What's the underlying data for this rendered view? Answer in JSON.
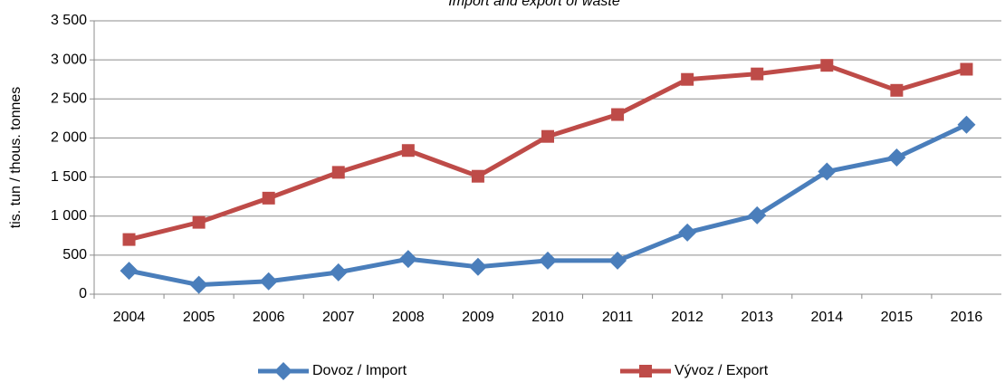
{
  "chart_data": {
    "type": "line",
    "title": "Import and export of waste",
    "y_label": "tis. tun / thous. tonnes",
    "categories": [
      "2004",
      "2005",
      "2006",
      "2007",
      "2008",
      "2009",
      "2010",
      "2011",
      "2012",
      "2013",
      "2014",
      "2015",
      "2016"
    ],
    "series": [
      {
        "name": "Dovoz / Import",
        "color": "#4a7ebb",
        "marker": "diamond",
        "values": [
          300,
          120,
          165,
          280,
          450,
          350,
          430,
          430,
          790,
          1010,
          1570,
          1750,
          2170
        ]
      },
      {
        "name": "Vývoz / Export",
        "color": "#be4b48",
        "marker": "square",
        "values": [
          700,
          920,
          1230,
          1560,
          1840,
          1510,
          2020,
          2300,
          2750,
          2820,
          2930,
          2610,
          2880
        ]
      }
    ],
    "ylim": [
      0,
      3500
    ],
    "yticks": [
      0,
      500,
      {
        "value": 1000,
        "label": "1 000"
      },
      {
        "value": 1500,
        "label": "1 500"
      },
      {
        "value": 2000,
        "label": "2 000"
      },
      {
        "value": 2500,
        "label": "2 500"
      },
      {
        "value": 3000,
        "label": "3 000"
      },
      {
        "value": 3500,
        "label": "3 500"
      }
    ],
    "grid": true,
    "legend": "bottom"
  }
}
